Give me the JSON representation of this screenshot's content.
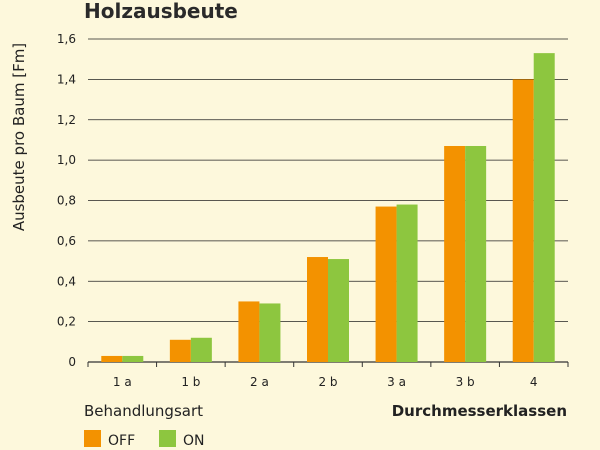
{
  "chart_data": {
    "type": "bar",
    "title": "Holzausbeute",
    "xlabel": "Durchmesserklassen",
    "ylabel": "Ausbeute pro Baum [Fm]",
    "categories": [
      "1 a",
      "1 b",
      "2 a",
      "2 b",
      "3 a",
      "3 b",
      "4"
    ],
    "ylim": [
      0,
      1.6
    ],
    "yticks": [
      "0",
      "0,2",
      "0,4",
      "0,6",
      "0,8",
      "1,0",
      "1,2",
      "1,4",
      "1,6"
    ],
    "grid": true,
    "legend_title": "Behandlungsart",
    "legend_position": "bottom-left",
    "series": [
      {
        "name": "OFF",
        "color": "#f39200",
        "values": [
          0.03,
          0.11,
          0.3,
          0.52,
          0.77,
          1.07,
          1.4
        ]
      },
      {
        "name": "ON",
        "color": "#8dc63f",
        "values": [
          0.03,
          0.12,
          0.29,
          0.51,
          0.78,
          1.07,
          1.53
        ]
      }
    ]
  }
}
